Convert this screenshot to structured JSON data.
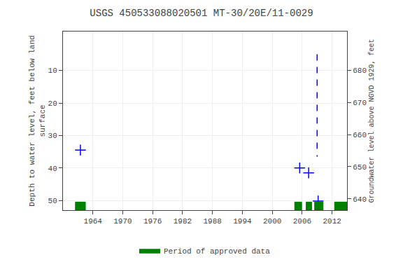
{
  "chart_data": {
    "type": "scatter",
    "title": "USGS 450533088020501 MT-30/20E/11-0029",
    "y_label": "Depth to water level, feet below land\nsurface",
    "y2_label": "Groundwater level above NGVD 1929, feet",
    "xlim": [
      1958,
      2015
    ],
    "xticks": [
      1964,
      1970,
      1976,
      1982,
      1988,
      1994,
      2000,
      2006,
      2012
    ],
    "ylim": [
      53,
      -2
    ],
    "yticks": [
      10,
      20,
      30,
      40,
      50
    ],
    "y2lim": [
      636.5,
      692
    ],
    "y2ticks": [
      640,
      650,
      660,
      670,
      680
    ],
    "grid": true,
    "legend": "bottom",
    "series": [
      {
        "type": "scatter",
        "color": "blue",
        "marker": "+",
        "x": [
          1961.5,
          2005.5,
          2007.3,
          2009.2
        ],
        "values": [
          34.5,
          40.0,
          41.5,
          50.2
        ]
      },
      {
        "type": "line",
        "color": "blue",
        "line_style": "dashed",
        "x": [
          2009.0,
          2009.0
        ],
        "values": [
          5.0,
          36.5
        ]
      },
      {
        "type": "span",
        "name": "Period of approved data",
        "color": "#008000",
        "spans": [
          [
            1960.5,
            1962.5
          ],
          [
            2004.5,
            2005.9
          ],
          [
            2006.8,
            2007.9
          ],
          [
            2008.5,
            2010.2
          ],
          [
            2012.5,
            2015.0
          ]
        ],
        "y": [
          50.5,
          53
        ]
      }
    ]
  }
}
